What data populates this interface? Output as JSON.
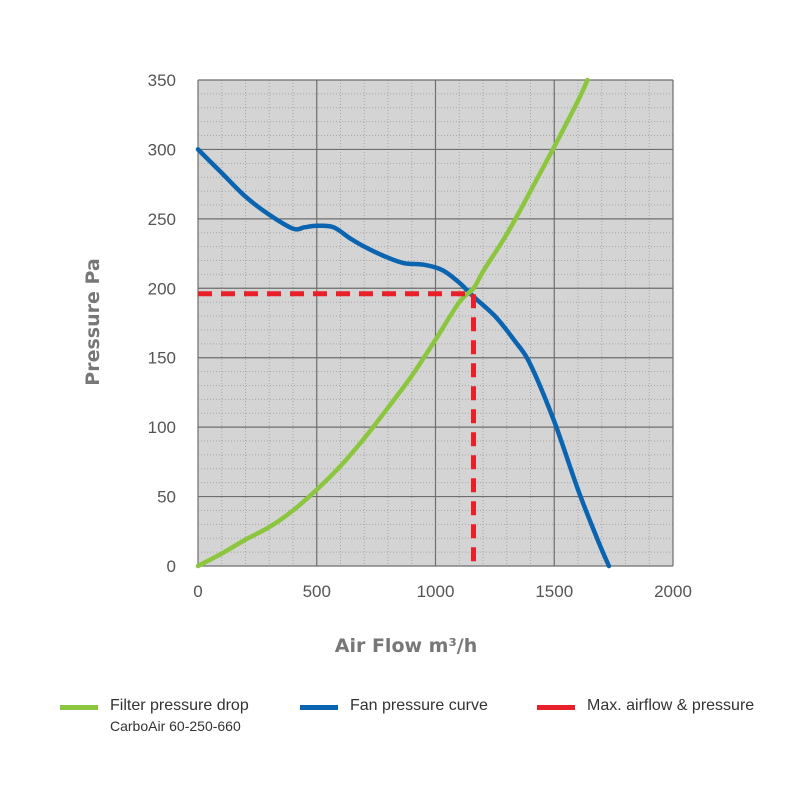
{
  "chart_data": {
    "type": "line",
    "xlabel": "Air Flow m³/h",
    "ylabel": "Pressure Pa",
    "xlim": [
      0,
      2000
    ],
    "ylim": [
      0,
      350
    ],
    "x_ticks": [
      0,
      500,
      1000,
      1500,
      2000
    ],
    "y_ticks": [
      0,
      50,
      100,
      150,
      200,
      250,
      300,
      350
    ],
    "grid": true,
    "legend_position": "bottom",
    "colors": {
      "plot_background": "#d4d4d4",
      "filter": "#8cc63f",
      "fan": "#0a64b0",
      "max": "#e8202a"
    },
    "series": [
      {
        "name": "Filter pressure drop",
        "subtitle": "CarboAir 60-250-660",
        "color": "#8cc63f",
        "style": "solid",
        "x": [
          0,
          100,
          200,
          300,
          400,
          500,
          600,
          700,
          800,
          900,
          1000,
          1100,
          1160,
          1200,
          1300,
          1400,
          1500,
          1600,
          1640
        ],
        "y": [
          0,
          9,
          19,
          28,
          40,
          55,
          72,
          92,
          114,
          137,
          163,
          190,
          200,
          212,
          239,
          270,
          302,
          335,
          350
        ]
      },
      {
        "name": "Fan pressure curve",
        "color": "#0a64b0",
        "style": "solid",
        "x": [
          0,
          100,
          200,
          300,
          400,
          450,
          500,
          570,
          640,
          700,
          800,
          870,
          950,
          1030,
          1100,
          1160,
          1250,
          1330,
          1400,
          1500,
          1600,
          1680,
          1730
        ],
        "y": [
          300,
          283,
          266,
          253,
          243,
          244,
          245,
          244,
          236,
          230,
          222,
          218,
          217,
          213,
          204,
          194,
          180,
          163,
          145,
          104,
          55,
          20,
          0
        ]
      },
      {
        "name": "Max. airflow & pressure",
        "color": "#e8202a",
        "style": "dashed",
        "x": [
          0,
          1160,
          1160
        ],
        "y": [
          196,
          196,
          0
        ]
      }
    ]
  }
}
